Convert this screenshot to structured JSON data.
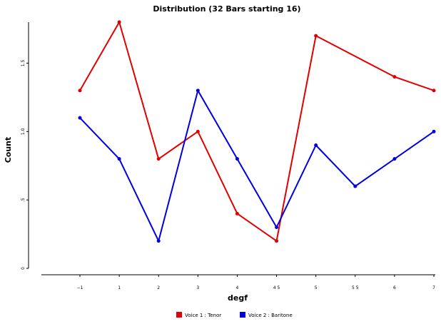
{
  "chart_data": {
    "type": "line",
    "title": "Distribution (32 Bars starting 16)",
    "xlabel": "degf",
    "ylabel": "Count",
    "x": [
      -1,
      1,
      2,
      3,
      4,
      4.5,
      5,
      5.5,
      6,
      7
    ],
    "x_tick_labels": [
      "−1",
      "1",
      "2",
      "3",
      "4",
      "4 5",
      "5",
      "5 5",
      "6",
      "7"
    ],
    "y_ticks": [
      0,
      0.5,
      1.0,
      1.5
    ],
    "y_tick_labels": [
      "0",
      ".5",
      "1.0",
      "1.5"
    ],
    "ylim": [
      0,
      1.8
    ],
    "grid": false,
    "legend_position": "bottom",
    "series": [
      {
        "name": "Voice 1 : Tenor",
        "color": "#e00000",
        "values": [
          1.3,
          1.8,
          0.8,
          1.0,
          0.4,
          0.2,
          1.7,
          null,
          1.4,
          1.3
        ]
      },
      {
        "name": "Voice 2 : Baritone",
        "color": "#0000e0",
        "values": [
          1.1,
          0.8,
          0.2,
          1.3,
          0.8,
          0.3,
          0.9,
          0.6,
          0.8,
          1.0
        ]
      }
    ]
  }
}
